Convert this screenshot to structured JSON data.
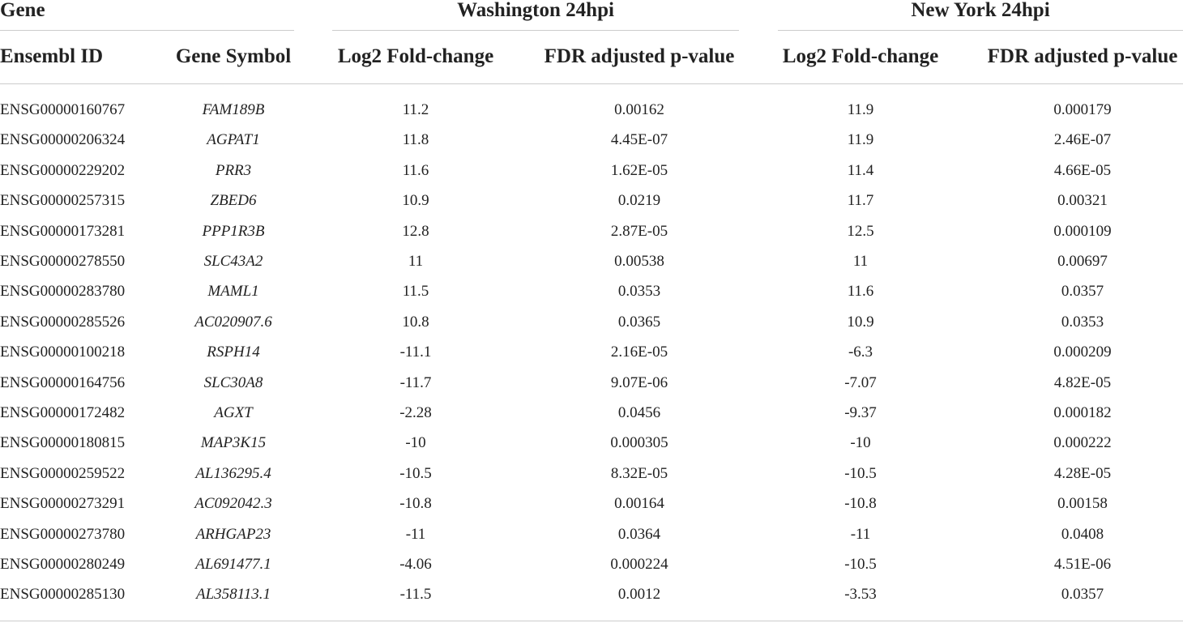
{
  "header": {
    "groups": [
      "Gene",
      "Washington 24hpi",
      "New York 24hpi"
    ],
    "columns": [
      "Ensembl ID",
      "Gene Symbol",
      "Log2 Fold-change",
      "FDR adjusted p-value",
      "Log2 Fold-change",
      "FDR adjusted p-value"
    ]
  },
  "table": {
    "rows": [
      [
        "ENSG00000160767",
        "FAM189B",
        "11.2",
        "0.00162",
        "11.9",
        "0.000179"
      ],
      [
        "ENSG00000206324",
        "AGPAT1",
        "11.8",
        "4.45E-07",
        "11.9",
        "2.46E-07"
      ],
      [
        "ENSG00000229202",
        "PRR3",
        "11.6",
        "1.62E-05",
        "11.4",
        "4.66E-05"
      ],
      [
        "ENSG00000257315",
        "ZBED6",
        "10.9",
        "0.0219",
        "11.7",
        "0.00321"
      ],
      [
        "ENSG00000173281",
        "PPP1R3B",
        "12.8",
        "2.87E-05",
        "12.5",
        "0.000109"
      ],
      [
        "ENSG00000278550",
        "SLC43A2",
        "11",
        "0.00538",
        "11",
        "0.00697"
      ],
      [
        "ENSG00000283780",
        "MAML1",
        "11.5",
        "0.0353",
        "11.6",
        "0.0357"
      ],
      [
        "ENSG00000285526",
        "AC020907.6",
        "10.8",
        "0.0365",
        "10.9",
        "0.0353"
      ],
      [
        "ENSG00000100218",
        "RSPH14",
        "-11.1",
        "2.16E-05",
        "-6.3",
        "0.000209"
      ],
      [
        "ENSG00000164756",
        "SLC30A8",
        "-11.7",
        "9.07E-06",
        "-7.07",
        "4.82E-05"
      ],
      [
        "ENSG00000172482",
        "AGXT",
        "-2.28",
        "0.0456",
        "-9.37",
        "0.000182"
      ],
      [
        "ENSG00000180815",
        "MAP3K15",
        "-10",
        "0.000305",
        "-10",
        "0.000222"
      ],
      [
        "ENSG00000259522",
        "AL136295.4",
        "-10.5",
        "8.32E-05",
        "-10.5",
        "4.28E-05"
      ],
      [
        "ENSG00000273291",
        "AC092042.3",
        "-10.8",
        "0.00164",
        "-10.8",
        "0.00158"
      ],
      [
        "ENSG00000273780",
        "ARHGAP23",
        "-11",
        "0.0364",
        "-11",
        "0.0408"
      ],
      [
        "ENSG00000280249",
        "AL691477.1",
        "-4.06",
        "0.000224",
        "-10.5",
        "4.51E-06"
      ],
      [
        "ENSG00000285130",
        "AL358113.1",
        "-11.5",
        "0.0012",
        "-3.53",
        "0.0357"
      ]
    ]
  }
}
